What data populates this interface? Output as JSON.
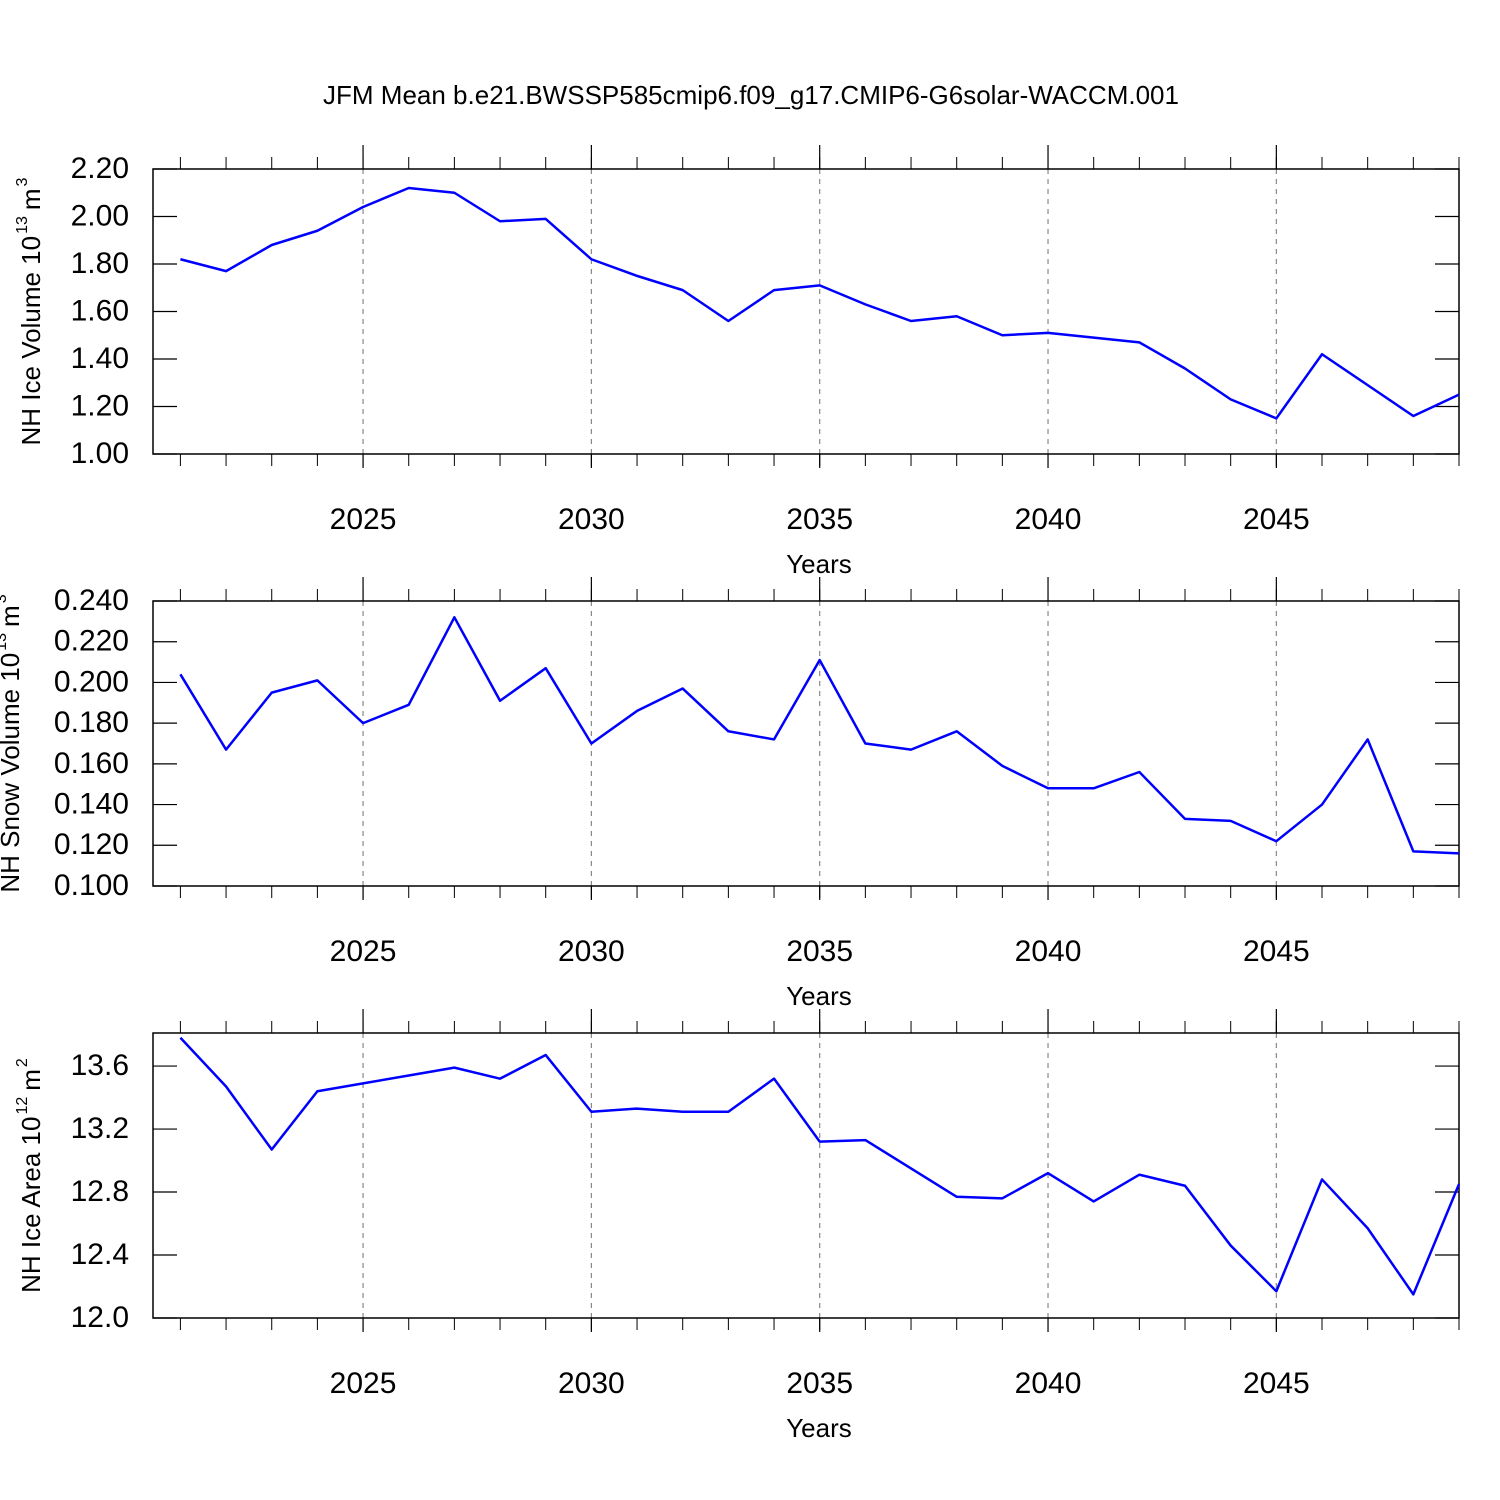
{
  "title": "JFM Mean b.e21.BWSSP585cmip6.f09_g17.CMIP6-G6solar-WACCM.001",
  "chart_data": [
    {
      "type": "line",
      "color": "#0000ff",
      "grid": true,
      "xlabel": "Years",
      "ylabel": [
        "NH Ice Volume 10",
        "13",
        "m",
        "3"
      ],
      "x": [
        2021,
        2022,
        2023,
        2024,
        2025,
        2026,
        2027,
        2028,
        2029,
        2030,
        2031,
        2032,
        2033,
        2034,
        2035,
        2036,
        2037,
        2038,
        2039,
        2040,
        2041,
        2042,
        2043,
        2044,
        2045,
        2046,
        2047,
        2048,
        2049
      ],
      "values": [
        1.82,
        1.77,
        1.88,
        1.94,
        2.04,
        2.12,
        2.1,
        1.98,
        1.99,
        1.82,
        1.75,
        1.69,
        1.56,
        1.69,
        1.71,
        1.63,
        1.56,
        1.58,
        1.5,
        1.51,
        1.49,
        1.47,
        1.36,
        1.23,
        1.15,
        1.42,
        1.29,
        1.16,
        1.25
      ],
      "xlim": [
        2020.4,
        2049
      ],
      "xticks": [
        2025,
        2030,
        2035,
        2040,
        2045
      ],
      "ylim": [
        1.0,
        2.2
      ],
      "yticks": [
        {
          "value": 1.0,
          "label": "1.00"
        },
        {
          "value": 1.2,
          "label": "1.20"
        },
        {
          "value": 1.4,
          "label": "1.40"
        },
        {
          "value": 1.6,
          "label": "1.60"
        },
        {
          "value": 1.8,
          "label": "1.80"
        },
        {
          "value": 2.0,
          "label": "2.00"
        },
        {
          "value": 2.2,
          "label": "2.20"
        }
      ]
    },
    {
      "type": "line",
      "color": "#0000ff",
      "grid": true,
      "xlabel": "Years",
      "ylabel": [
        "NH Snow Volume 10",
        "13",
        "m",
        "3"
      ],
      "x": [
        2021,
        2022,
        2023,
        2024,
        2025,
        2026,
        2027,
        2028,
        2029,
        2030,
        2031,
        2032,
        2033,
        2034,
        2035,
        2036,
        2037,
        2038,
        2039,
        2040,
        2041,
        2042,
        2043,
        2044,
        2045,
        2046,
        2047,
        2048,
        2049
      ],
      "values": [
        0.204,
        0.167,
        0.195,
        0.201,
        0.18,
        0.189,
        0.232,
        0.191,
        0.207,
        0.17,
        0.186,
        0.197,
        0.176,
        0.172,
        0.211,
        0.17,
        0.167,
        0.176,
        0.159,
        0.148,
        0.148,
        0.156,
        0.133,
        0.132,
        0.122,
        0.14,
        0.172,
        0.117,
        0.116
      ],
      "xlim": [
        2020.4,
        2049
      ],
      "xticks": [
        2025,
        2030,
        2035,
        2040,
        2045
      ],
      "ylim": [
        0.1,
        0.24
      ],
      "yticks": [
        {
          "value": 0.1,
          "label": "0.100"
        },
        {
          "value": 0.12,
          "label": "0.120"
        },
        {
          "value": 0.14,
          "label": "0.140"
        },
        {
          "value": 0.16,
          "label": "0.160"
        },
        {
          "value": 0.18,
          "label": "0.180"
        },
        {
          "value": 0.2,
          "label": "0.200"
        },
        {
          "value": 0.22,
          "label": "0.220"
        },
        {
          "value": 0.24,
          "label": "0.240"
        }
      ]
    },
    {
      "type": "line",
      "color": "#0000ff",
      "grid": true,
      "xlabel": "Years",
      "ylabel": [
        "NH Ice Area 10",
        "12",
        "m",
        "2"
      ],
      "x": [
        2021,
        2022,
        2023,
        2024,
        2025,
        2026,
        2027,
        2028,
        2029,
        2030,
        2031,
        2032,
        2033,
        2034,
        2035,
        2036,
        2037,
        2038,
        2039,
        2040,
        2041,
        2042,
        2043,
        2044,
        2045,
        2046,
        2047,
        2048,
        2049
      ],
      "values": [
        13.78,
        13.47,
        13.07,
        13.44,
        13.49,
        13.54,
        13.59,
        13.52,
        13.67,
        13.31,
        13.33,
        13.31,
        13.31,
        13.52,
        13.12,
        13.13,
        12.95,
        12.77,
        12.76,
        12.92,
        12.74,
        12.91,
        12.84,
        12.46,
        12.17,
        12.88,
        12.57,
        12.15,
        12.85
      ],
      "xlim": [
        2020.4,
        2049
      ],
      "xticks": [
        2025,
        2030,
        2035,
        2040,
        2045
      ],
      "ylim": [
        12.0,
        13.81
      ],
      "yticks": [
        {
          "value": 12.0,
          "label": "12.0"
        },
        12.4,
        12.8,
        13.2,
        13.6
      ]
    }
  ]
}
